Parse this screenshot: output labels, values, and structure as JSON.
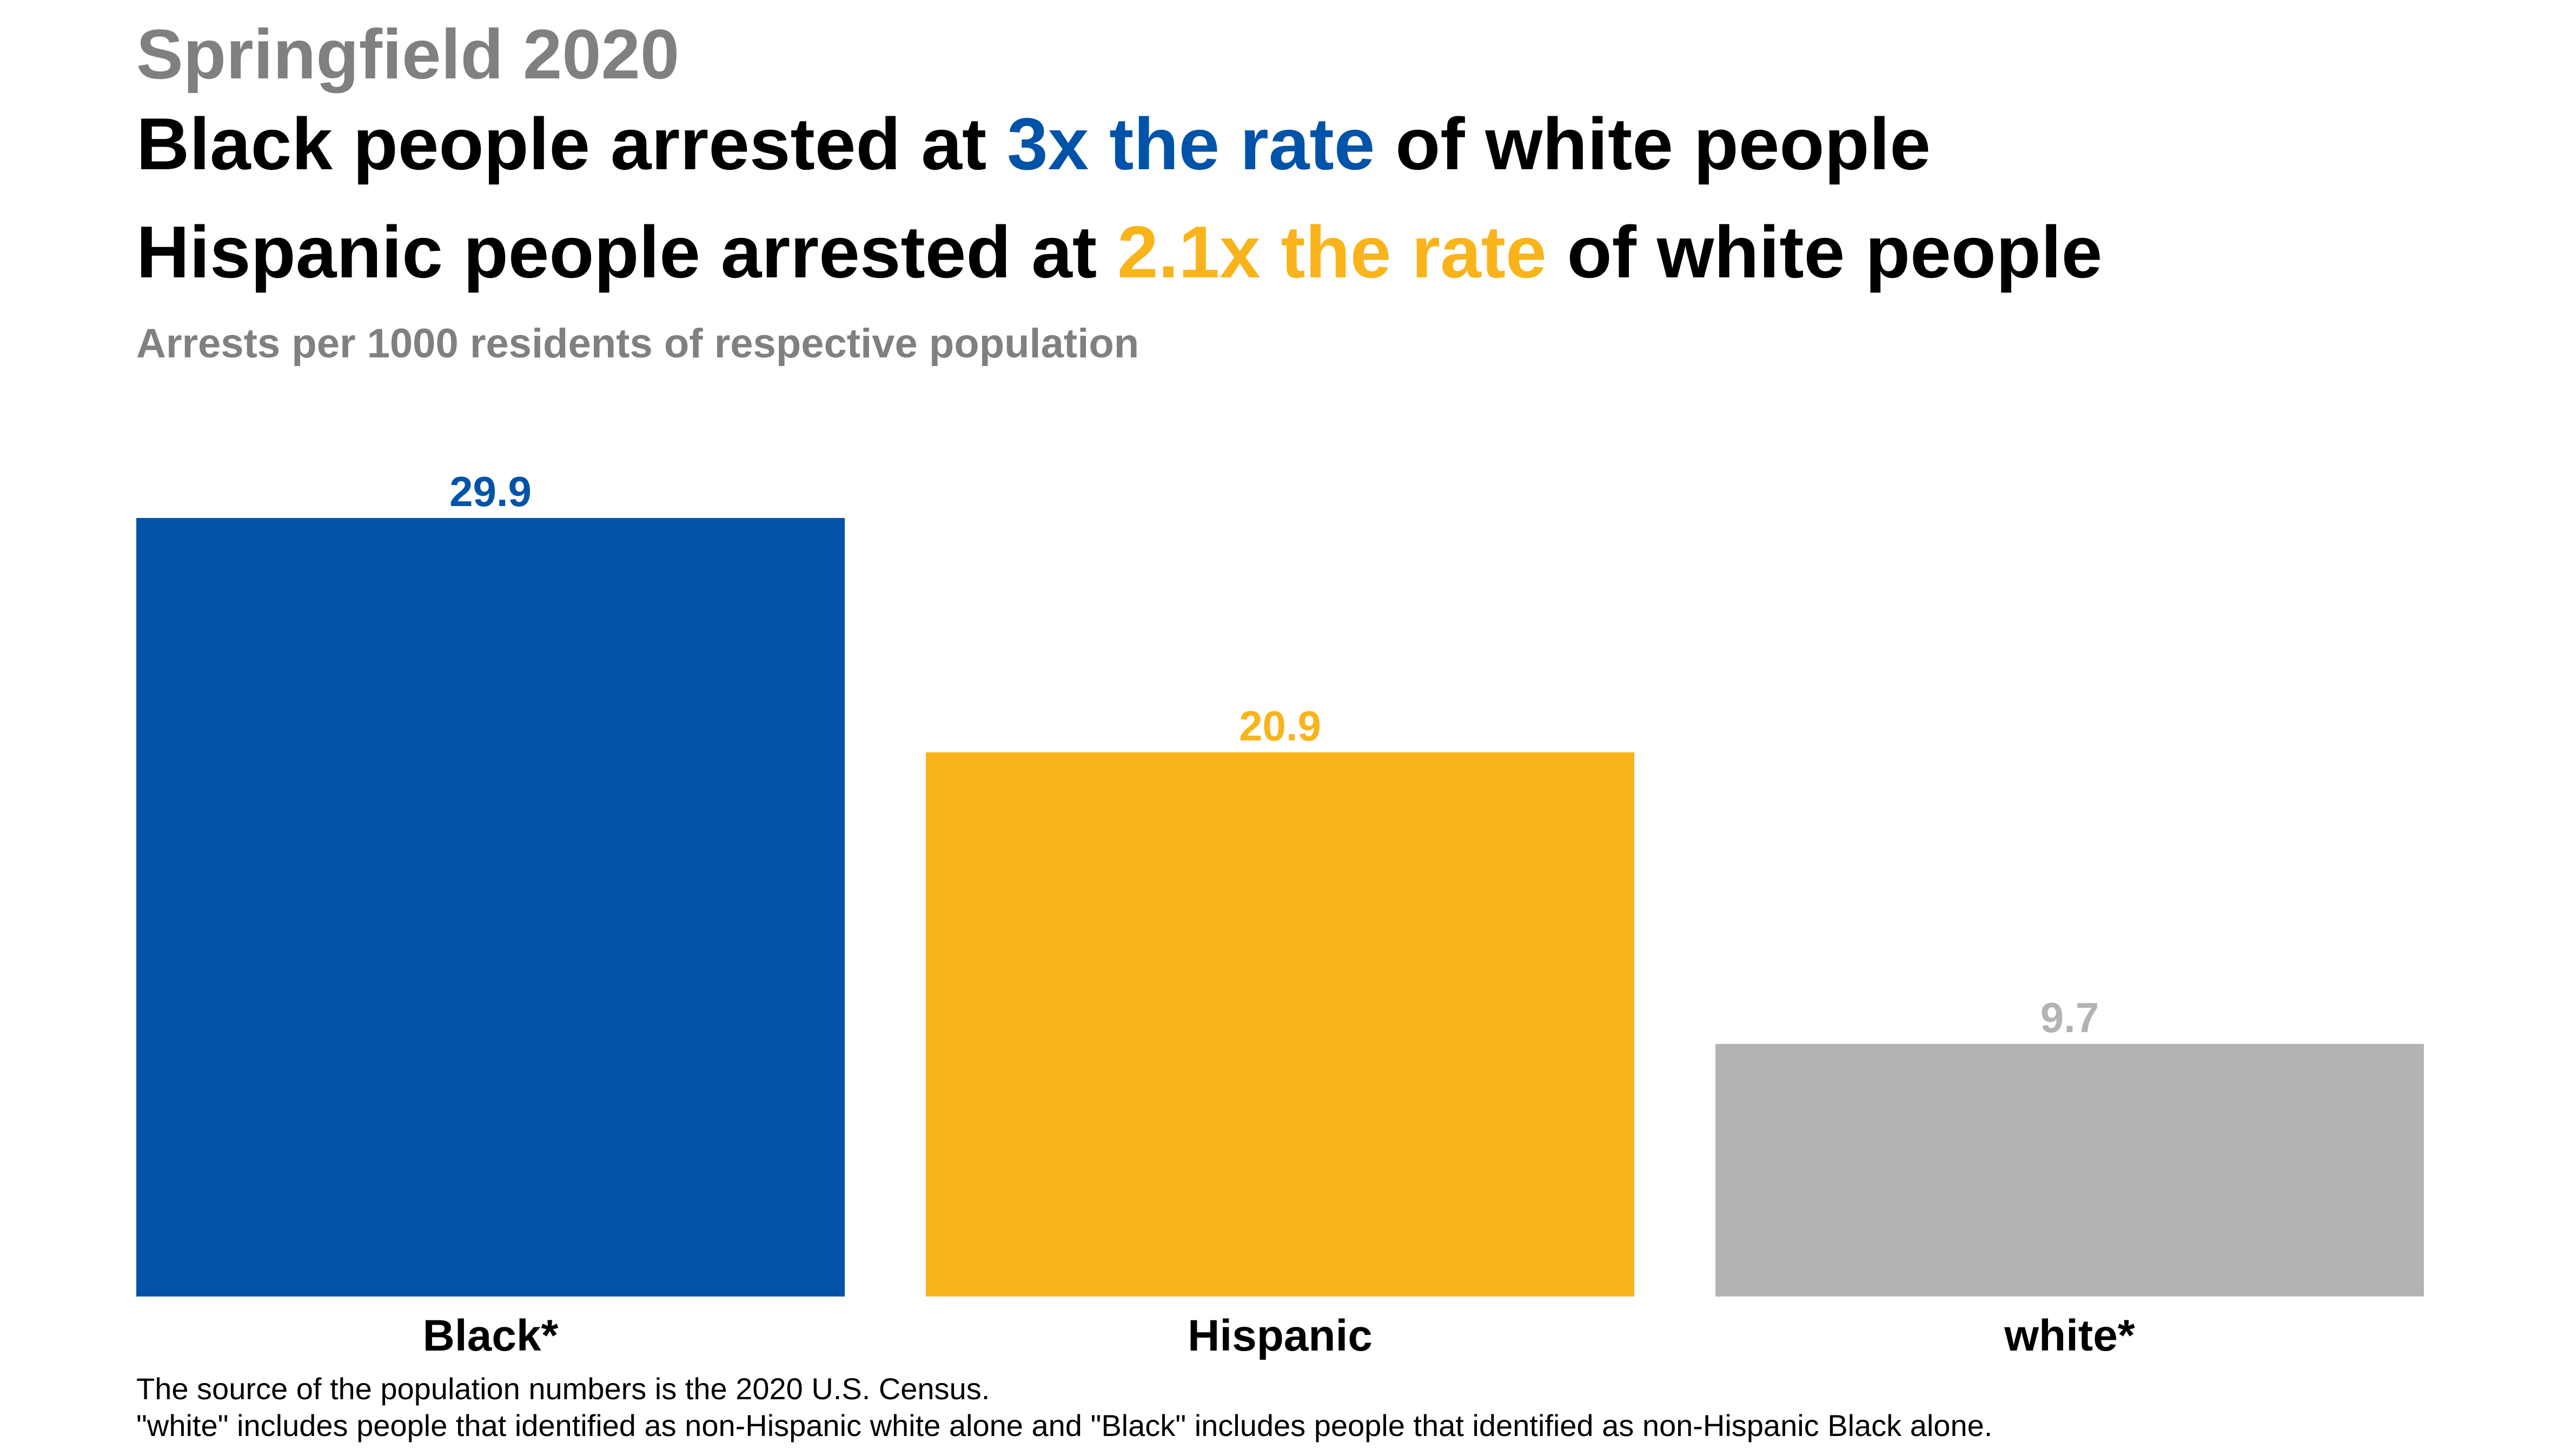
{
  "kicker": "Springfield 2020",
  "headline": {
    "line1": {
      "before": "Black people arrested at ",
      "highlight": "3x the rate",
      "after": " of white people",
      "highlight_color": "#0053A8"
    },
    "line2": {
      "before": "Hispanic people arrested at ",
      "highlight": "2.1x the rate",
      "after": " of white people",
      "highlight_color": "#F8B41A"
    }
  },
  "footnotes": {
    "line1": "The source of the population numbers is the 2020 U.S. Census.",
    "line2": "\"white\" includes people that identified as non-Hispanic white alone and \"Black\" includes people that identified as non-Hispanic Black alone."
  },
  "chart_data": {
    "type": "bar",
    "title": "Springfield 2020",
    "subtitle": "Arrests per 1000 residents of respective population",
    "categories": [
      "Black*",
      "Hispanic",
      "white*"
    ],
    "values": [
      29.9,
      20.9,
      9.7
    ],
    "data_labels": [
      "29.9",
      "20.9",
      "9.7"
    ],
    "colors": [
      "#0053A8",
      "#F8B41A",
      "#B3B3B3"
    ],
    "label_colors": [
      "#0053A8",
      "#F8B41A",
      "#B3B3B3"
    ],
    "ylim": [
      0,
      29.9
    ],
    "grid": false,
    "legend": "none",
    "xlabel": "",
    "ylabel": ""
  }
}
